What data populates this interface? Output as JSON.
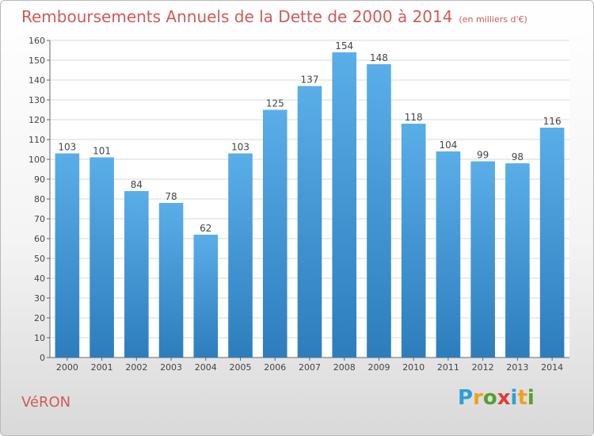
{
  "title": "Remboursements Annuels de la Dette de 2000 à 2014",
  "subtitle": "(en milliers d'€)",
  "town": "VéRON",
  "logo": {
    "letters": [
      "P",
      "r",
      "o",
      "x",
      "i",
      "t",
      "i"
    ],
    "colors": [
      "#2e9fd8",
      "#f0a020",
      "#55a030",
      "#e23a3a",
      "#2e9fd8",
      "#f0a020",
      "#55a030"
    ]
  },
  "colors": {
    "bar_light": "#5aaee8",
    "bar_dark": "#2d7dbd",
    "title": "#d05a5a",
    "grid": "#d8d8d8"
  },
  "chart_data": {
    "type": "bar",
    "categories": [
      "2000",
      "2001",
      "2002",
      "2003",
      "2004",
      "2005",
      "2006",
      "2007",
      "2008",
      "2009",
      "2010",
      "2011",
      "2012",
      "2013",
      "2014"
    ],
    "values": [
      103,
      101,
      84,
      78,
      62,
      103,
      125,
      137,
      154,
      148,
      118,
      104,
      99,
      98,
      116
    ],
    "ylim": [
      0,
      160
    ],
    "yticks": [
      0,
      10,
      20,
      30,
      40,
      50,
      60,
      70,
      80,
      90,
      100,
      110,
      120,
      130,
      140,
      150,
      160
    ],
    "grid": true,
    "data_labels": true
  }
}
